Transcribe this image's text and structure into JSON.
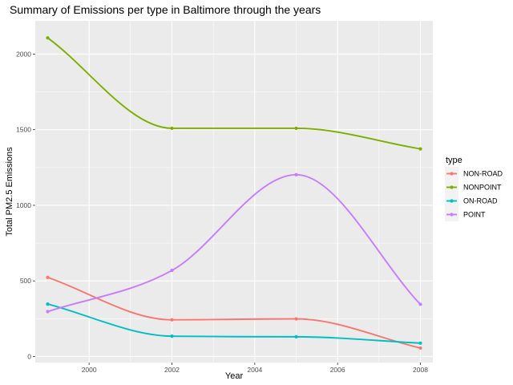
{
  "chart_data": {
    "type": "line",
    "title": "Summary of Emissions per type in Baltimore through the years",
    "xlabel": "Year",
    "ylabel": "Total PM2.5 Emissions",
    "x": [
      1999,
      2002,
      2005,
      2008
    ],
    "xlim": [
      1998.7,
      2008.3
    ],
    "ylim": [
      -40,
      2220
    ],
    "x_ticks": [
      2000,
      2002,
      2004,
      2006,
      2008
    ],
    "y_ticks": [
      0,
      500,
      1000,
      1500,
      2000
    ],
    "grid": true,
    "smoothed": true,
    "legend": {
      "title": "type",
      "placement": "right"
    },
    "series": [
      {
        "name": "NON-ROAD",
        "color": "#F8766D",
        "values": [
          522.9,
          242.8,
          248.9,
          55.8
        ]
      },
      {
        "name": "NONPOINT",
        "color": "#7CAE00",
        "values": [
          2107.6,
          1509.5,
          1509.5,
          1373.2
        ]
      },
      {
        "name": "ON-ROAD",
        "color": "#00BFC4",
        "values": [
          346.8,
          134.3,
          130.4,
          88.3
        ]
      },
      {
        "name": "POINT",
        "color": "#C77CFF",
        "values": [
          296.8,
          569.3,
          1202.5,
          344.98
        ]
      }
    ]
  }
}
